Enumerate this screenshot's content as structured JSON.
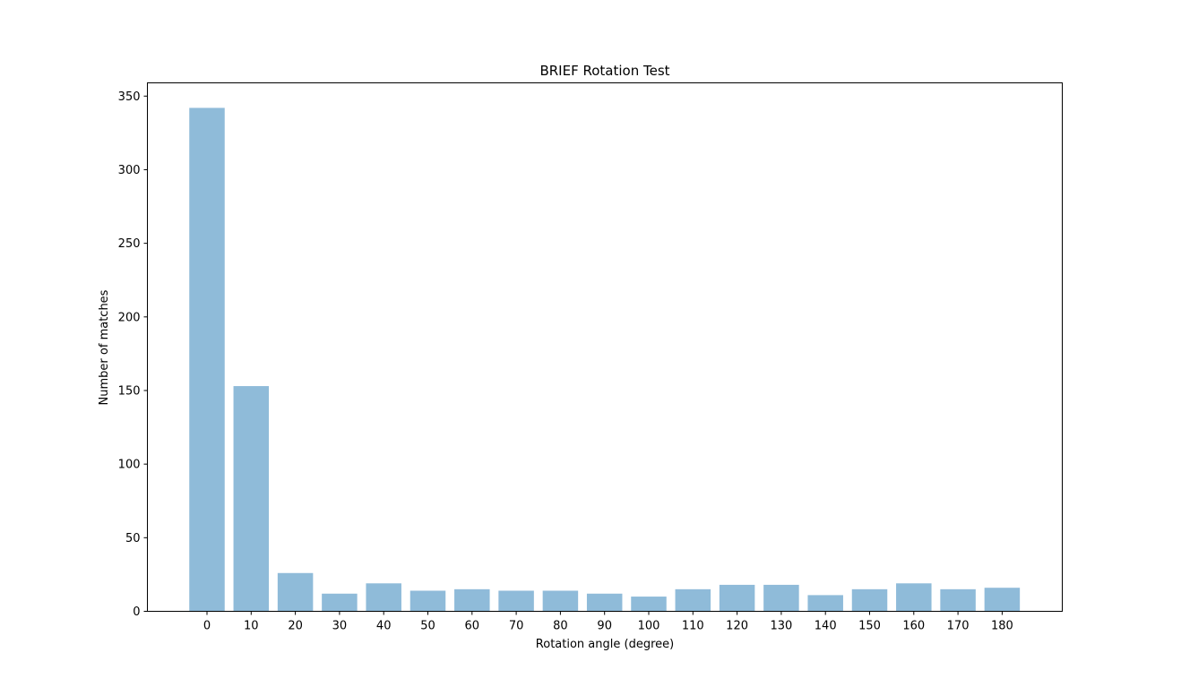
{
  "chart_data": {
    "type": "bar",
    "title": "BRIEF Rotation Test",
    "xlabel": "Rotation angle (degree)",
    "ylabel": "Number of matches",
    "categories": [
      "0",
      "10",
      "20",
      "30",
      "40",
      "50",
      "60",
      "70",
      "80",
      "90",
      "100",
      "110",
      "120",
      "130",
      "140",
      "150",
      "160",
      "170",
      "180"
    ],
    "values": [
      342,
      153,
      26,
      12,
      19,
      14,
      15,
      14,
      14,
      12,
      10,
      15,
      18,
      18,
      11,
      15,
      19,
      15,
      16
    ],
    "ylim": [
      0,
      359
    ],
    "yticks": [
      0,
      50,
      100,
      150,
      200,
      250,
      300,
      350
    ],
    "grid": false,
    "bar_color": "#1f77b4",
    "bar_opacity": 0.5
  }
}
